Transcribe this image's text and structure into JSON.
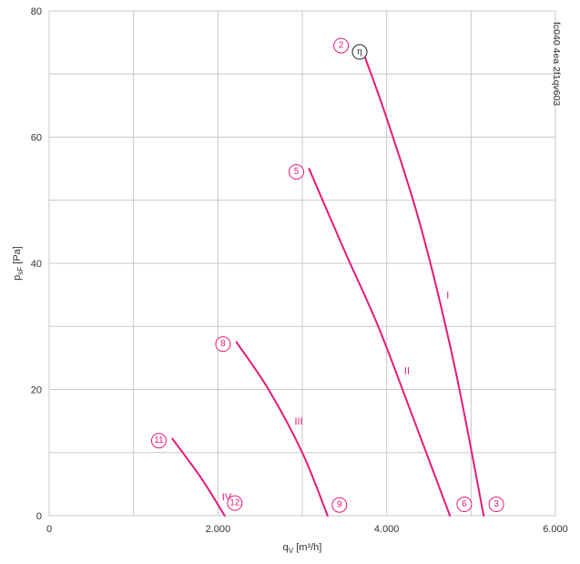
{
  "chart_data": {
    "type": "line",
    "title": "",
    "xlabel": "q",
    "xlabel_sub": "V",
    "xlabel_unit": " [m³/h]",
    "ylabel": "p",
    "ylabel_sub": "sF",
    "ylabel_unit": " [Pa]",
    "xlim": [
      0,
      6000
    ],
    "ylim": [
      0,
      80
    ],
    "x_ticks": [
      {
        "value": 0,
        "label": "0"
      },
      {
        "value": 2000,
        "label": "2.000"
      },
      {
        "value": 4000,
        "label": "4.000"
      },
      {
        "value": 6000,
        "label": "6.000"
      }
    ],
    "y_ticks": [
      {
        "value": 0,
        "label": "0"
      },
      {
        "value": 20,
        "label": "20"
      },
      {
        "value": 40,
        "label": "40"
      },
      {
        "value": 60,
        "label": "60"
      },
      {
        "value": 80,
        "label": "80"
      }
    ],
    "x_grid_step": 1000,
    "y_grid_step": 10,
    "grid": true,
    "series_color": "#e6197a",
    "series": [
      {
        "name": "I",
        "x": [
          3720,
          4000,
          4400,
          4800,
          5150
        ],
        "y": [
          73.5,
          63,
          46,
          24,
          0
        ]
      },
      {
        "name": "II",
        "x": [
          3080,
          3500,
          3900,
          4300,
          4750
        ],
        "y": [
          55,
          42,
          30,
          16,
          0
        ]
      },
      {
        "name": "III",
        "x": [
          2220,
          2600,
          3000,
          3300
        ],
        "y": [
          27.5,
          20,
          10,
          0
        ]
      },
      {
        "name": "IV",
        "x": [
          1460,
          1800,
          2080
        ],
        "y": [
          12.2,
          6,
          0
        ]
      }
    ],
    "markers": [
      {
        "label": "2",
        "x": 3460,
        "y": 74.5
      },
      {
        "label": "3",
        "x": 5300,
        "y": 1.8
      },
      {
        "label": "5",
        "x": 2930,
        "y": 54.5
      },
      {
        "label": "6",
        "x": 4920,
        "y": 1.8
      },
      {
        "label": "8",
        "x": 2060,
        "y": 27.2
      },
      {
        "label": "9",
        "x": 3440,
        "y": 1.7
      },
      {
        "label": "11",
        "x": 1300,
        "y": 11.9
      },
      {
        "label": "12",
        "x": 2200,
        "y": 2.0
      }
    ],
    "efficiency_marker": {
      "label": "η",
      "x": 3680,
      "y": 73.5
    },
    "reference_code": "fc040 4ea 2f1qv603"
  }
}
